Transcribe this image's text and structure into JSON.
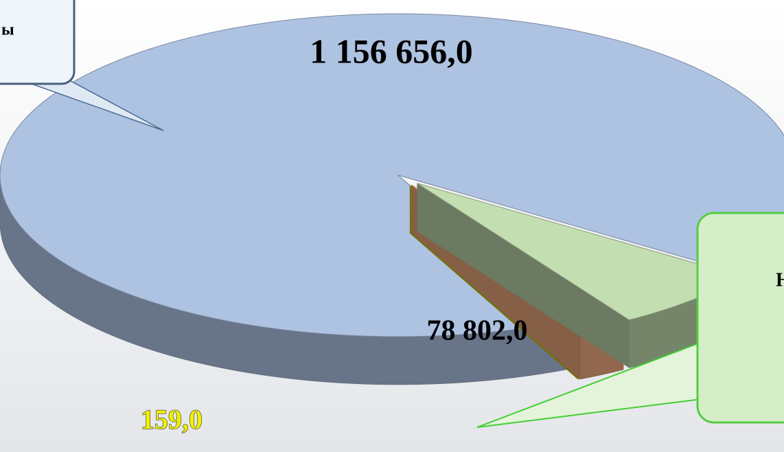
{
  "chart_data": {
    "type": "pie",
    "categories": [
      "ы",
      "Н",
      null,
      null
    ],
    "values": [
      1156656,
      78802,
      25000,
      159
    ],
    "value_labels": [
      "1 156 656,0",
      "78 802,0",
      null,
      "159,0"
    ],
    "colors": [
      "#aec2e2",
      "#c3deb1",
      "#f2ad80",
      "#d0d000"
    ],
    "exploded": true
  }
}
